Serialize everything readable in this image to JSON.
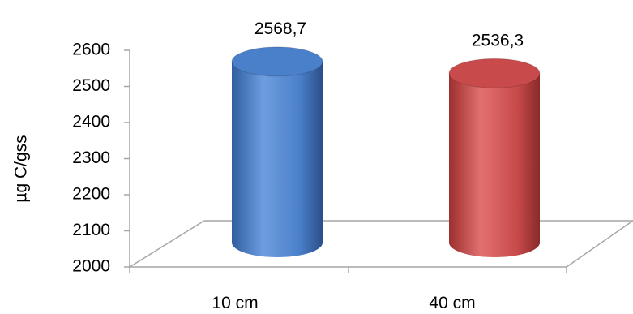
{
  "chart_data": {
    "type": "bar",
    "style": "3d-cylinder",
    "categories": [
      "10 cm",
      "40 cm"
    ],
    "values": [
      2568.7,
      2536.3
    ],
    "data_labels": [
      "2568,7",
      "2536,3"
    ],
    "colors": [
      "#4a7fc9",
      "#c84a4a"
    ],
    "ylabel": "µg C/gss",
    "ylim": [
      2000,
      2600
    ],
    "yticks": [
      "2000",
      "2100",
      "2200",
      "2300",
      "2400",
      "2500",
      "2600"
    ],
    "grid": false,
    "legend": "none"
  }
}
